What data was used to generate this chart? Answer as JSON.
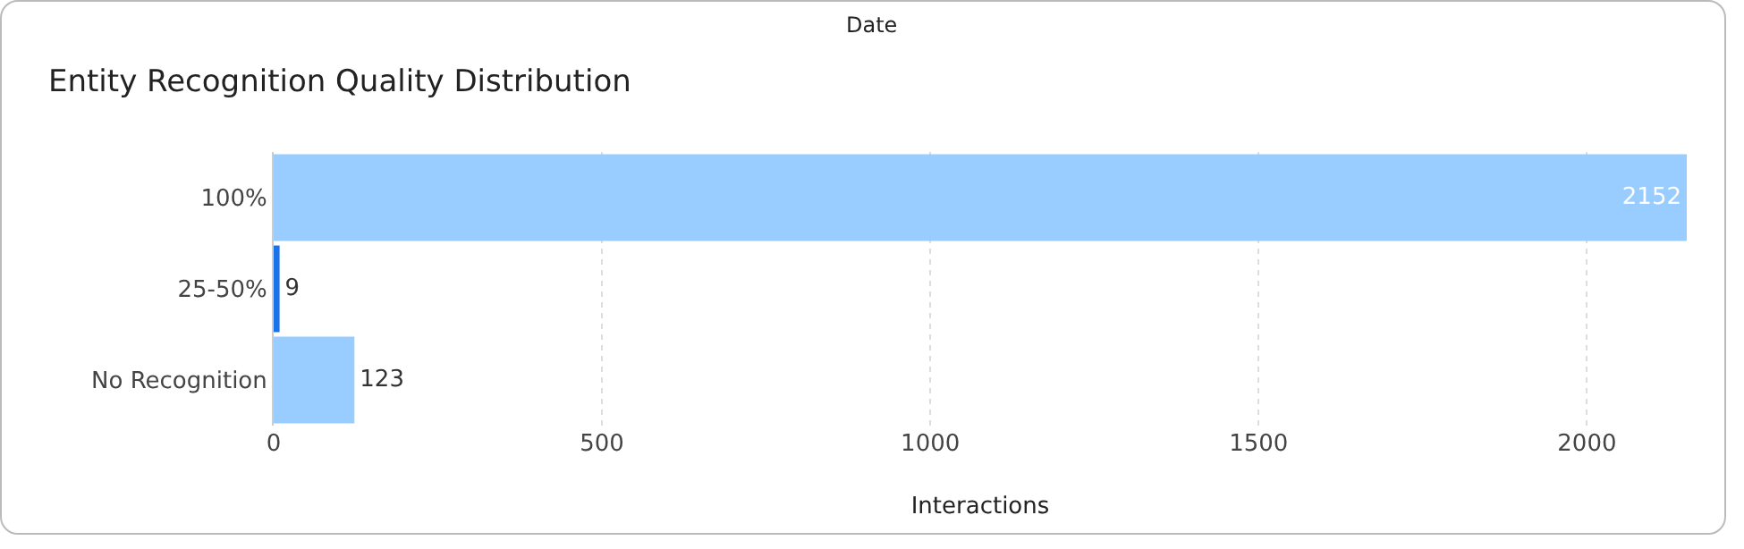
{
  "chart_data": {
    "type": "bar",
    "orientation": "horizontal",
    "title": "Entity Recognition Quality Distribution",
    "xlabel": "Interactions",
    "annotations": [
      "Date"
    ],
    "categories": [
      "100%",
      "25-50%",
      "No Recognition"
    ],
    "values": [
      2152,
      9,
      123
    ],
    "colors": [
      "#99ccff",
      "#1a73e8",
      "#99ccff"
    ],
    "xlim": [
      0,
      2152
    ],
    "xticks": [
      0,
      500,
      1000,
      1500,
      2000
    ],
    "grid": "x",
    "data_labels": true
  }
}
